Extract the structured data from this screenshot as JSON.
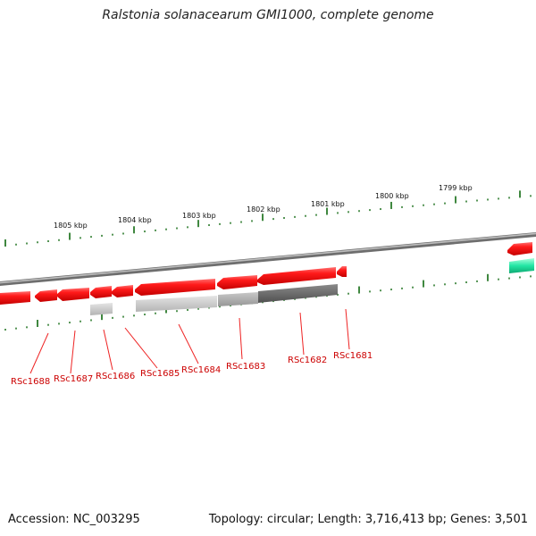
{
  "title": "Ralstonia solanacearum GMI1000, complete genome",
  "footer": {
    "accession": "Accession: NC_003295",
    "summary": "Topology: circular; Length: 3,716,413 bp; Genes: 3,501"
  },
  "colors": {
    "gene_red": "#ff1a1a",
    "gene_label": "#cc0000",
    "leader_line": "#ee2222",
    "tick": "#2a7a2a",
    "backbone": "#888888",
    "feature_teal": "#22e0a0"
  },
  "ruler_labels": [
    "1805 kbp",
    "1804 kbp",
    "1803 kbp",
    "1802 kbp",
    "1801 kbp",
    "1800 kbp",
    "1799 kbp"
  ],
  "gene_labels": [
    "RSc1688",
    "RSc1687",
    "RSc1686",
    "RSc1685",
    "RSc1684",
    "RSc1683",
    "RSc1682",
    "RSc1681"
  ]
}
